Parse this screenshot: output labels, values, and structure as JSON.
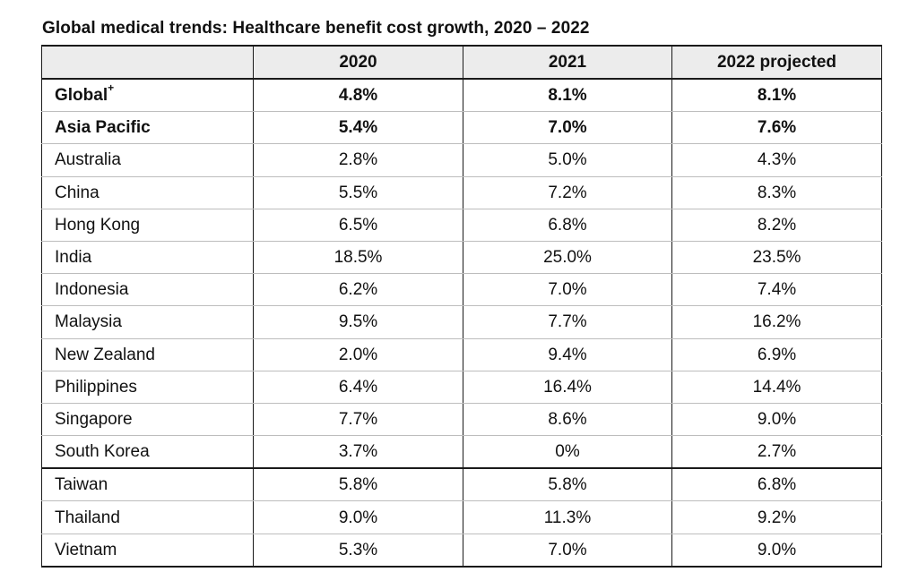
{
  "title": "Global medical trends: Healthcare benefit cost growth, 2020 – 2022",
  "table": {
    "headers": [
      "",
      "2020",
      "2021",
      "2022 projected"
    ],
    "rows": [
      {
        "label": "Global",
        "superscript": "+",
        "values": [
          "4.8%",
          "8.1%",
          "8.1%"
        ],
        "bold": true
      },
      {
        "label": "Asia Pacific",
        "values": [
          "5.4%",
          "7.0%",
          "7.6%"
        ],
        "bold": true
      },
      {
        "label": "Australia",
        "values": [
          "2.8%",
          "5.0%",
          "4.3%"
        ]
      },
      {
        "label": "China",
        "values": [
          "5.5%",
          "7.2%",
          "8.3%"
        ]
      },
      {
        "label": "Hong Kong",
        "values": [
          "6.5%",
          "6.8%",
          "8.2%"
        ]
      },
      {
        "label": "India",
        "values": [
          "18.5%",
          "25.0%",
          "23.5%"
        ]
      },
      {
        "label": "Indonesia",
        "values": [
          "6.2%",
          "7.0%",
          "7.4%"
        ]
      },
      {
        "label": "Malaysia",
        "values": [
          "9.5%",
          "7.7%",
          "16.2%"
        ]
      },
      {
        "label": "New Zealand",
        "values": [
          "2.0%",
          "9.4%",
          "6.9%"
        ]
      },
      {
        "label": "Philippines",
        "values": [
          "6.4%",
          "16.4%",
          "14.4%"
        ]
      },
      {
        "label": "Singapore",
        "values": [
          "7.7%",
          "8.6%",
          "9.0%"
        ]
      },
      {
        "label": "South Korea",
        "values": [
          "3.7%",
          "0%",
          "2.7%"
        ]
      },
      {
        "label": "Taiwan",
        "values": [
          "5.8%",
          "5.8%",
          "6.8%"
        ]
      },
      {
        "label": "Thailand",
        "values": [
          "9.0%",
          "11.3%",
          "9.2%"
        ]
      },
      {
        "label": "Vietnam",
        "values": [
          "5.3%",
          "7.0%",
          "9.0%"
        ]
      }
    ]
  }
}
